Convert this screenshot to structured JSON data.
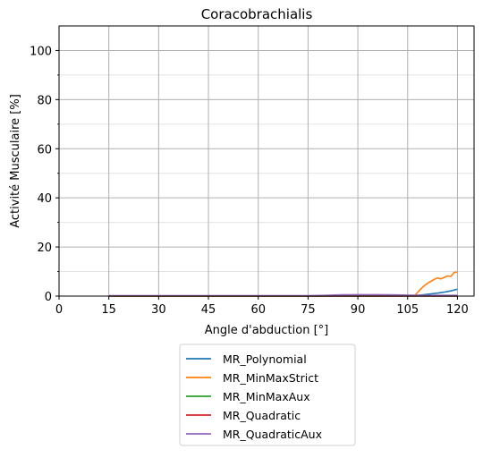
{
  "chart_data": {
    "type": "line",
    "title": "Coracobrachialis",
    "xlabel": "Angle d'abduction [°]",
    "ylabel": "Activité Musculaire [%]",
    "xlim": [
      0,
      125
    ],
    "ylim": [
      0,
      110
    ],
    "xticks": [
      0,
      15,
      30,
      45,
      60,
      75,
      90,
      105,
      120
    ],
    "yticks": [
      0,
      20,
      40,
      60,
      80,
      100
    ],
    "yminor_ticks": [
      10,
      30,
      50,
      70,
      90
    ],
    "grid": true,
    "legend_position": "below",
    "series": [
      {
        "name": "MR_Polynomial",
        "color": "#1f77b4",
        "x": [
          15,
          90,
          105,
          108,
          110,
          112,
          114,
          116,
          118,
          120
        ],
        "y": [
          0,
          0,
          0.1,
          0.3,
          0.6,
          0.9,
          1.2,
          1.6,
          2.1,
          2.8
        ]
      },
      {
        "name": "MR_MinMaxStrict",
        "color": "#ff7f0e",
        "x": [
          15,
          105,
          107,
          108,
          109,
          110,
          111,
          112,
          113,
          114,
          115,
          116,
          117,
          118,
          119,
          120
        ],
        "y": [
          0,
          0,
          0,
          1.5,
          3.0,
          4.2,
          5.2,
          6.0,
          6.8,
          7.4,
          7.0,
          7.6,
          8.2,
          8.0,
          9.6,
          9.8
        ]
      },
      {
        "name": "MR_MinMaxAux",
        "color": "#2ca02c",
        "x": [
          15,
          120
        ],
        "y": [
          0,
          0
        ]
      },
      {
        "name": "MR_Quadratic",
        "color": "#d62728",
        "x": [
          15,
          120
        ],
        "y": [
          0,
          0
        ]
      },
      {
        "name": "MR_QuadraticAux",
        "color": "#9467bd",
        "x": [
          15,
          75,
          80,
          85,
          90,
          95,
          100,
          105,
          110,
          115,
          120
        ],
        "y": [
          0.2,
          0.2,
          0.3,
          0.5,
          0.6,
          0.6,
          0.5,
          0.4,
          0.3,
          0.3,
          0.3
        ]
      }
    ]
  }
}
